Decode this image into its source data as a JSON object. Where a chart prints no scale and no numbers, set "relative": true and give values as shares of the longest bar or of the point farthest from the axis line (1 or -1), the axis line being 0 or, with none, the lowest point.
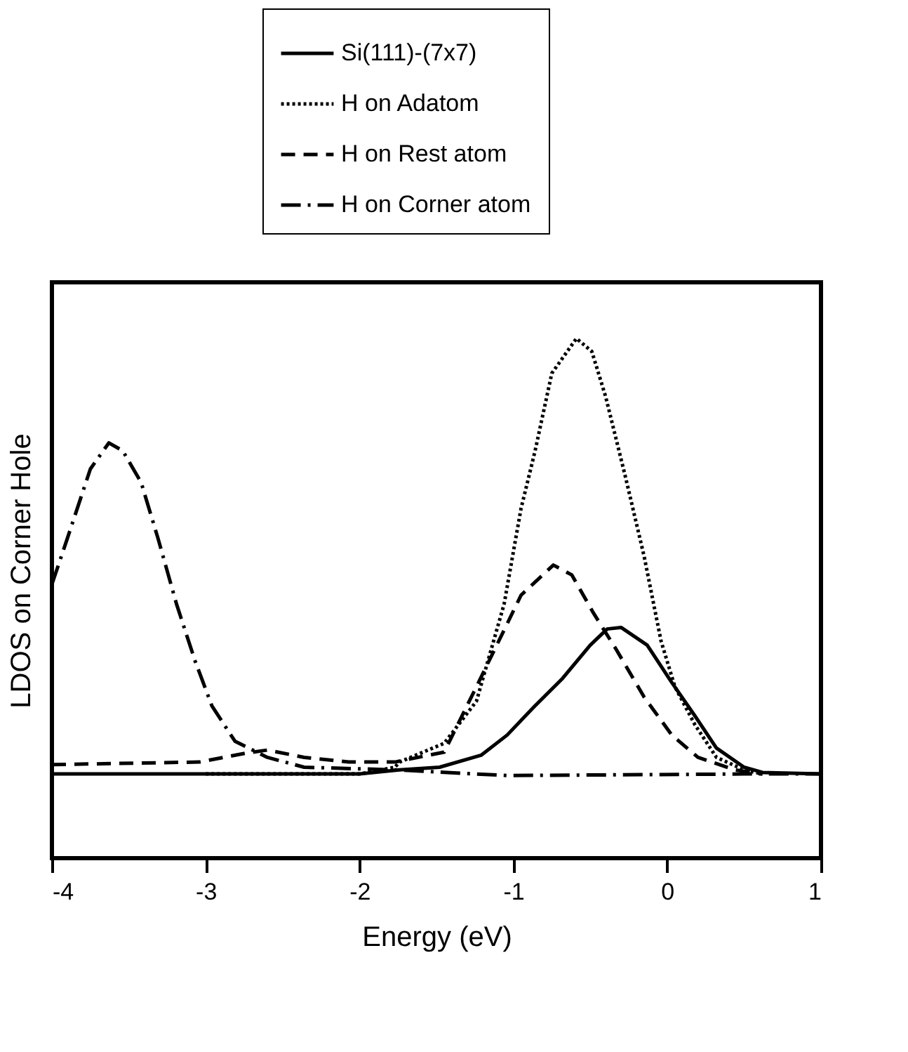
{
  "chart_data": {
    "type": "line",
    "relative": true,
    "xlabel": "Energy  (eV)",
    "ylabel": "LDOS on Corner Hole",
    "xlim": [
      -4,
      1
    ],
    "xticks": [
      -4,
      -3,
      -2,
      -1,
      0,
      1
    ],
    "tick_labels": "x",
    "grid": false,
    "legend": "top",
    "marker": "none",
    "series": [
      {
        "name": "Si(111)-(7x7)",
        "color": "#000000",
        "line_style": "solid",
        "x": [
          -4,
          -2,
          -1.74,
          -1.48,
          -1.21,
          -1.04,
          -0.86,
          -0.68,
          -0.5,
          -0.39,
          -0.3,
          -0.13,
          0.03,
          0.18,
          0.32,
          0.5,
          0.62,
          1
        ],
        "values": [
          0.162,
          0.162,
          0.17,
          0.175,
          0.198,
          0.237,
          0.293,
          0.346,
          0.41,
          0.441,
          0.444,
          0.41,
          0.338,
          0.274,
          0.212,
          0.175,
          0.165,
          0.162
        ]
      },
      {
        "name": "H on Adatom",
        "color": "#000000",
        "line_style": "dotted",
        "x": [
          -3,
          -2,
          -1.77,
          -1.74,
          -1.45,
          -1.24,
          -1.06,
          -0.95,
          -0.86,
          -0.75,
          -0.59,
          -0.49,
          -0.4,
          -0.27,
          -0.15,
          -0.04,
          0.05,
          0.18,
          0.32,
          0.5,
          0.62
        ],
        "values": [
          0.162,
          0.162,
          0.175,
          0.185,
          0.221,
          0.302,
          0.489,
          0.673,
          0.782,
          0.933,
          1.0,
          0.975,
          0.888,
          0.732,
          0.581,
          0.418,
          0.33,
          0.257,
          0.194,
          0.17,
          0.162
        ]
      },
      {
        "name": "H on Rest atom",
        "color": "#000000",
        "line_style": "dashed",
        "x": [
          -4,
          -3.04,
          -2.74,
          -2.6,
          -2.36,
          -2.07,
          -1.77,
          -1.45,
          -1.24,
          -1.06,
          -0.95,
          -0.74,
          -0.62,
          -0.48,
          -0.33,
          -0.15,
          0.03,
          0.2,
          0.44,
          0.62
        ],
        "values": [
          0.18,
          0.185,
          0.202,
          0.208,
          0.194,
          0.185,
          0.185,
          0.204,
          0.33,
          0.439,
          0.506,
          0.564,
          0.545,
          0.472,
          0.401,
          0.31,
          0.237,
          0.194,
          0.17,
          0.162
        ]
      },
      {
        "name": "H on Corner atom",
        "color": "#000000",
        "line_style": "dashdot",
        "x": [
          -4,
          -3.9,
          -3.75,
          -3.63,
          -3.54,
          -3.42,
          -3.31,
          -3.19,
          -3.07,
          -2.96,
          -2.81,
          -2.6,
          -2.36,
          -1.77,
          -1.04,
          0.5,
          1
        ],
        "values": [
          0.527,
          0.615,
          0.749,
          0.799,
          0.784,
          0.723,
          0.615,
          0.489,
          0.38,
          0.293,
          0.225,
          0.194,
          0.175,
          0.17,
          0.159,
          0.162,
          0.162
        ]
      }
    ]
  }
}
